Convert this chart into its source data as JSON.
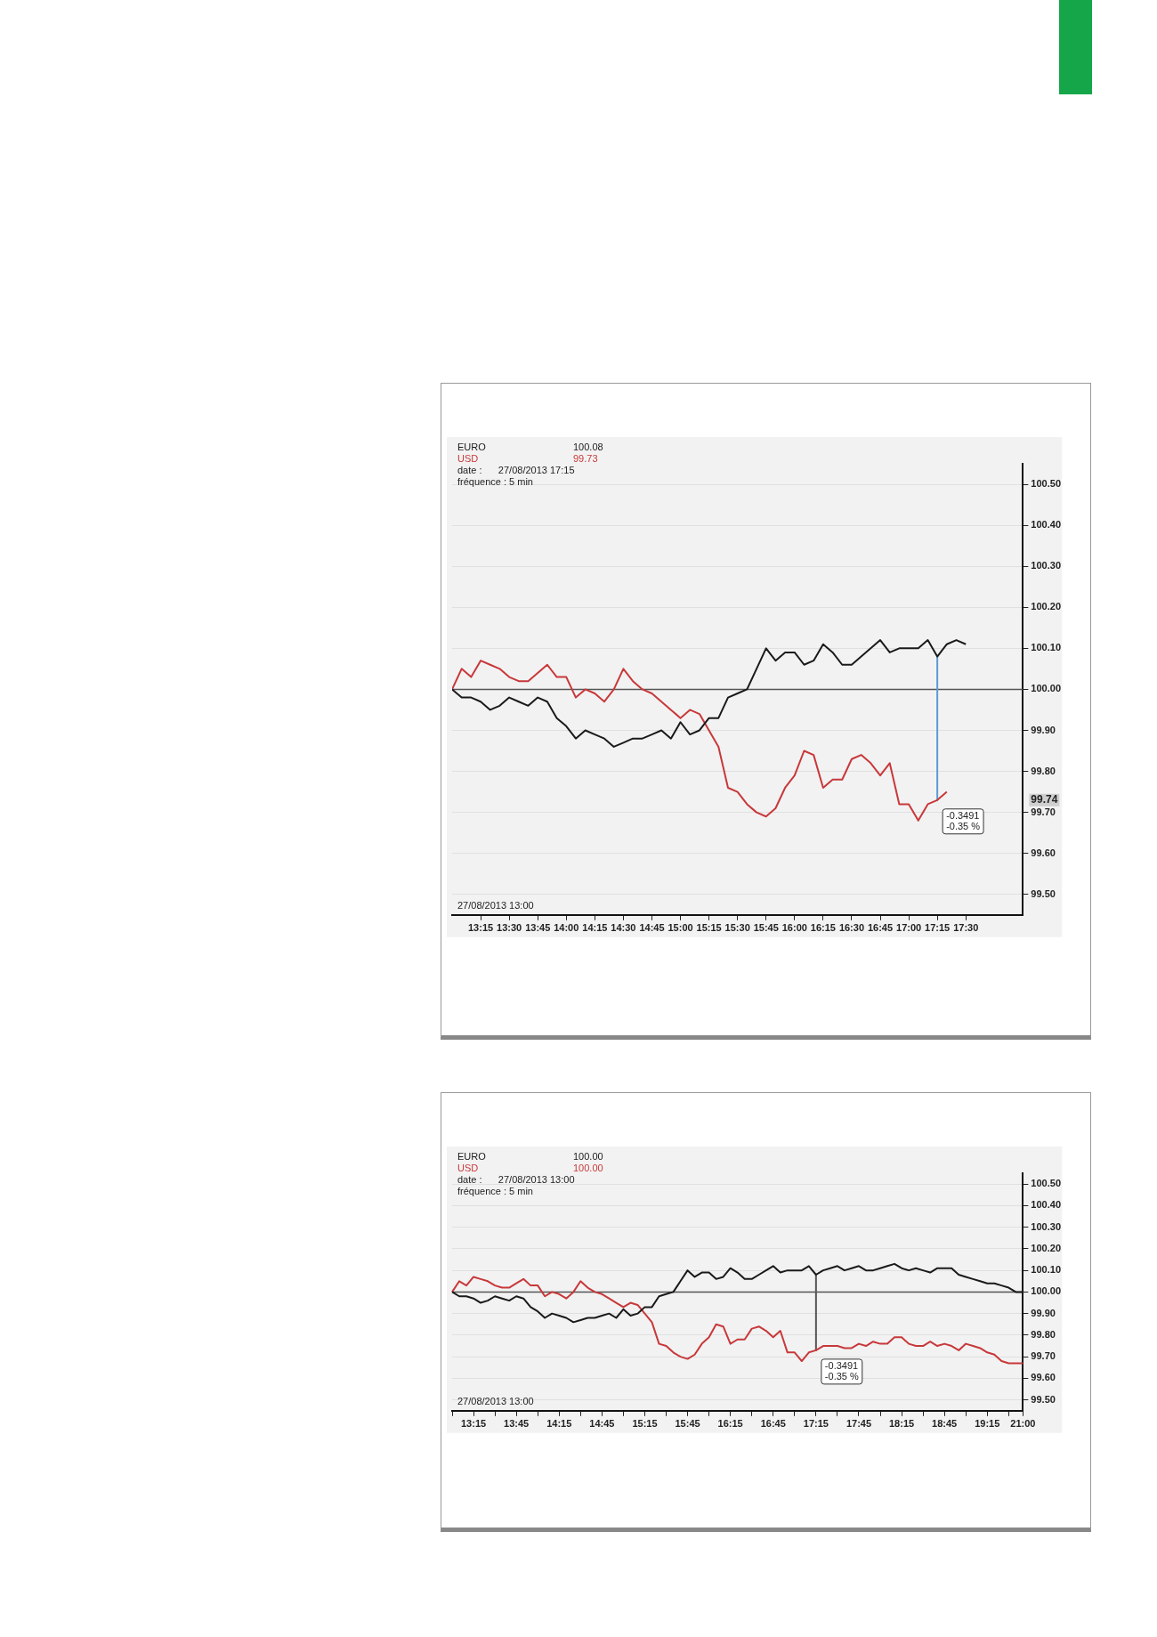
{
  "chart_data": [
    {
      "type": "line",
      "legend": "top left",
      "grid": "y",
      "xlim": [
        13,
        18
      ],
      "ylim": [
        99.45,
        100.55
      ],
      "xticks": [
        {
          "value": 13.25,
          "label": "13:15"
        },
        {
          "value": 13.5,
          "label": "13:30"
        },
        {
          "value": 13.75,
          "label": "13:45"
        },
        {
          "value": 14,
          "label": "14:00"
        },
        {
          "value": 14.25,
          "label": "14:15"
        },
        {
          "value": 14.5,
          "label": "14:30"
        },
        {
          "value": 14.75,
          "label": "14:45"
        },
        {
          "value": 15,
          "label": "15:00"
        },
        {
          "value": 15.25,
          "label": "15:15"
        },
        {
          "value": 15.5,
          "label": "15:30"
        },
        {
          "value": 15.75,
          "label": "15:45"
        },
        {
          "value": 16,
          "label": "16:00"
        },
        {
          "value": 16.25,
          "label": "16:15"
        },
        {
          "value": 16.5,
          "label": "16:30"
        },
        {
          "value": 16.75,
          "label": "16:45"
        },
        {
          "value": 17,
          "label": "17:00"
        },
        {
          "value": 17.25,
          "label": "17:15"
        },
        {
          "value": 17.5,
          "label": "17:30"
        }
      ],
      "yticks": [
        {
          "value": 99.5,
          "label": "99.50"
        },
        {
          "value": 99.6,
          "label": "99.60"
        },
        {
          "value": 99.7,
          "label": "99.70"
        },
        {
          "value": 99.8,
          "label": "99.80"
        },
        {
          "value": 99.9,
          "label": "99.90"
        },
        {
          "value": 100,
          "label": "100.00"
        },
        {
          "value": 100.1,
          "label": "100.10"
        },
        {
          "value": 100.2,
          "label": "100.20"
        },
        {
          "value": 100.3,
          "label": "100.30"
        },
        {
          "value": 100.4,
          "label": "100.40"
        },
        {
          "value": 100.5,
          "label": "100.50"
        }
      ],
      "x": [
        13,
        13.0833,
        13.1667,
        13.25,
        13.3333,
        13.4167,
        13.5,
        13.5833,
        13.6667,
        13.75,
        13.8333,
        13.9167,
        14,
        14.0833,
        14.1667,
        14.25,
        14.3333,
        14.4167,
        14.5,
        14.5833,
        14.6667,
        14.75,
        14.8333,
        14.9167,
        15,
        15.0833,
        15.1667,
        15.25,
        15.3333,
        15.4167,
        15.5,
        15.5833,
        15.6667,
        15.75,
        15.8333,
        15.9167,
        16,
        16.0833,
        16.1667,
        16.25,
        16.3333,
        16.4167,
        16.5,
        16.5833,
        16.6667,
        16.75,
        16.8333,
        16.9167,
        17,
        17.0833,
        17.1667,
        17.25,
        17.3333,
        17.4167,
        17.5
      ],
      "series": [
        {
          "name": "EURO",
          "color": "#1a1a1a",
          "values": [
            100.0,
            99.98,
            99.98,
            99.97,
            99.95,
            99.96,
            99.98,
            99.97,
            99.96,
            99.98,
            99.97,
            99.93,
            99.91,
            99.88,
            99.9,
            99.89,
            99.88,
            99.86,
            99.87,
            99.88,
            99.88,
            99.89,
            99.9,
            99.88,
            99.92,
            99.89,
            99.9,
            99.93,
            99.93,
            99.98,
            99.99,
            100.0,
            100.05,
            100.1,
            100.07,
            100.09,
            100.09,
            100.06,
            100.07,
            100.11,
            100.09,
            100.06,
            100.06,
            100.08,
            100.1,
            100.12,
            100.09,
            100.1,
            100.1,
            100.1,
            100.12,
            100.08,
            100.11,
            100.12,
            100.11
          ]
        },
        {
          "name": "USD",
          "color": "#c8383a",
          "values": [
            100.0,
            100.05,
            100.03,
            100.07,
            100.06,
            100.05,
            100.03,
            100.02,
            100.02,
            100.04,
            100.06,
            100.03,
            100.03,
            99.98,
            100.0,
            99.99,
            99.97,
            100.0,
            100.05,
            100.02,
            100.0,
            99.99,
            99.97,
            99.95,
            99.93,
            99.95,
            99.94,
            99.9,
            99.86,
            99.76,
            99.75,
            99.72,
            99.7,
            99.69,
            99.71,
            99.76,
            99.79,
            99.85,
            99.84,
            99.76,
            99.78,
            99.78,
            99.83,
            99.84,
            99.82,
            99.79,
            99.82,
            99.72,
            99.72,
            99.68,
            99.72,
            99.73,
            99.75,
            null,
            null
          ]
        },
        {
          "type": "line",
          "color": "#5b9bd5",
          "x": [
            17.25,
            17.25
          ],
          "values": [
            100.08,
            99.73
          ]
        }
      ],
      "ref_lines": [
        {
          "axis": "y",
          "value": 100,
          "color": "#555555"
        }
      ],
      "annotations": [
        "100.08",
        "99.73",
        "date :      27/08/2013 17:15",
        "fréquence : 5 min",
        "27/08/2013 13:00",
        "99.74",
        {
          "text": "-0.3491\n-0.35 %",
          "x": 17.25,
          "y": 99.73
        }
      ]
    },
    {
      "type": "line",
      "legend": "top left",
      "grid": "y",
      "ylim": [
        99.45,
        100.55
      ],
      "categories": [
        null,
        null,
        null,
        "13:15",
        null,
        null,
        null,
        null,
        null,
        "13:45",
        null,
        null,
        null,
        null,
        null,
        "14:15",
        null,
        null,
        null,
        null,
        null,
        "14:45",
        null,
        null,
        null,
        null,
        null,
        "15:15",
        null,
        null,
        null,
        null,
        null,
        "15:45",
        null,
        null,
        null,
        null,
        null,
        "16:15",
        null,
        null,
        null,
        null,
        null,
        "16:45",
        null,
        null,
        null,
        null,
        null,
        "17:15",
        null,
        null,
        null,
        null,
        null,
        "17:45",
        null,
        null,
        null,
        null,
        null,
        "18:15",
        null,
        null,
        null,
        null,
        null,
        "18:45",
        null,
        null,
        null,
        null,
        null,
        "19:15",
        null,
        null,
        null,
        null,
        "21:00"
      ],
      "yticks": [
        {
          "value": 99.5,
          "label": "99.50"
        },
        {
          "value": 99.6,
          "label": "99.60"
        },
        {
          "value": 99.7,
          "label": "99.70"
        },
        {
          "value": 99.8,
          "label": "99.80"
        },
        {
          "value": 99.9,
          "label": "99.90"
        },
        {
          "value": 100,
          "label": "100.00"
        },
        {
          "value": 100.1,
          "label": "100.10"
        },
        {
          "value": 100.2,
          "label": "100.20"
        },
        {
          "value": 100.3,
          "label": "100.30"
        },
        {
          "value": 100.4,
          "label": "100.40"
        },
        {
          "value": 100.5,
          "label": "100.50"
        }
      ],
      "series": [
        {
          "name": "EURO",
          "color": "#1a1a1a",
          "values": [
            100.0,
            99.98,
            99.98,
            99.97,
            99.95,
            99.96,
            99.98,
            99.97,
            99.96,
            99.98,
            99.97,
            99.93,
            99.91,
            99.88,
            99.9,
            99.89,
            99.88,
            99.86,
            99.87,
            99.88,
            99.88,
            99.89,
            99.9,
            99.88,
            99.92,
            99.89,
            99.9,
            99.93,
            99.93,
            99.98,
            99.99,
            100.0,
            100.05,
            100.1,
            100.07,
            100.09,
            100.09,
            100.06,
            100.07,
            100.11,
            100.09,
            100.06,
            100.06,
            100.08,
            100.1,
            100.12,
            100.09,
            100.1,
            100.1,
            100.1,
            100.12,
            100.08,
            100.1,
            100.11,
            100.12,
            100.1,
            100.11,
            100.12,
            100.1,
            100.1,
            100.11,
            100.12,
            100.13,
            100.11,
            100.1,
            100.11,
            100.1,
            100.09,
            100.11,
            100.11,
            100.11,
            100.08,
            100.07,
            100.06,
            100.05,
            100.04,
            100.04,
            100.03,
            100.02,
            100.0,
            100.0
          ]
        },
        {
          "name": "USD",
          "color": "#c8383a",
          "values": [
            100.0,
            100.05,
            100.03,
            100.07,
            100.06,
            100.05,
            100.03,
            100.02,
            100.02,
            100.04,
            100.06,
            100.03,
            100.03,
            99.98,
            100.0,
            99.99,
            99.97,
            100.0,
            100.05,
            100.02,
            100.0,
            99.99,
            99.97,
            99.95,
            99.93,
            99.95,
            99.94,
            99.9,
            99.86,
            99.76,
            99.75,
            99.72,
            99.7,
            99.69,
            99.71,
            99.76,
            99.79,
            99.85,
            99.84,
            99.76,
            99.78,
            99.78,
            99.83,
            99.84,
            99.82,
            99.79,
            99.82,
            99.72,
            99.72,
            99.68,
            99.72,
            99.73,
            99.75,
            99.75,
            99.75,
            99.74,
            99.74,
            99.76,
            99.75,
            99.77,
            99.76,
            99.76,
            99.79,
            99.79,
            99.76,
            99.75,
            99.75,
            99.77,
            99.75,
            99.76,
            99.75,
            99.73,
            99.76,
            99.75,
            99.74,
            99.72,
            99.71,
            99.68,
            99.67,
            99.67,
            99.67
          ]
        },
        {
          "type": "line",
          "color": "#555555",
          "x": [
            "17:15",
            "17:15"
          ],
          "values": [
            100.08,
            99.73
          ]
        }
      ],
      "ref_lines": [
        {
          "axis": "y",
          "value": 100,
          "color": "#555555"
        }
      ],
      "annotations": [
        "100.00",
        "100.00",
        "date :      27/08/2013 13:00",
        "fréquence : 5 min",
        "27/08/2013 13:00",
        {
          "text": "-0.3491\n-0.35 %",
          "x": "17:15",
          "y": 99.73
        }
      ]
    }
  ]
}
